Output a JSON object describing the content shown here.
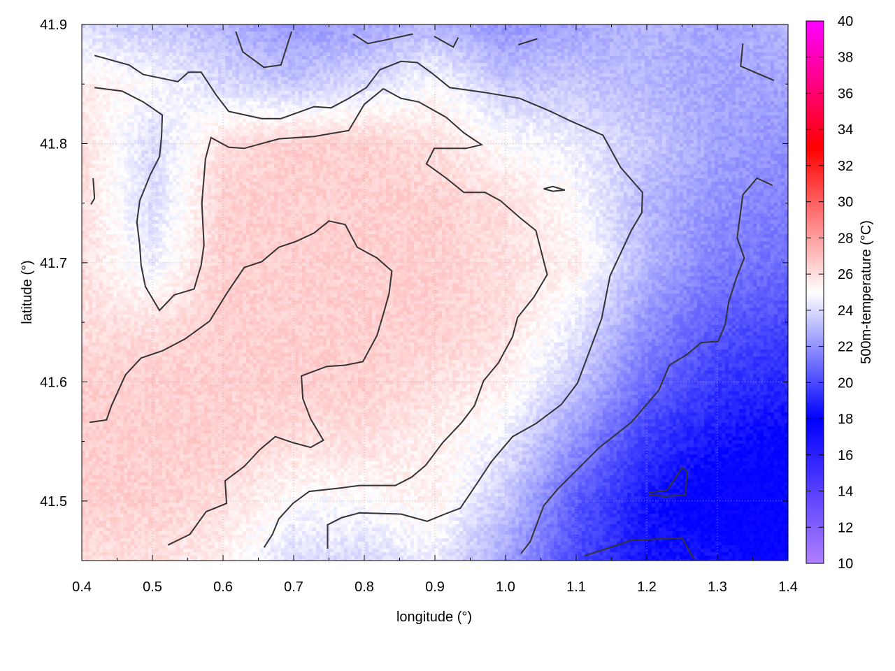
{
  "chart_data": {
    "type": "heatmap",
    "title": "",
    "xlabel": "longitude (°)",
    "ylabel": "latitude (°)",
    "colorbar_label": "500m-temperature (°C)",
    "xlim": [
      0.4,
      1.4
    ],
    "ylim": [
      41.45,
      41.9
    ],
    "xticks": [
      "0.4",
      "0.5",
      "0.6",
      "0.7",
      "0.8",
      "0.9",
      "1.0",
      "1.1",
      "1.2",
      "1.3",
      "1.4"
    ],
    "yticks": [
      "41.5",
      "41.6",
      "41.7",
      "41.8",
      "41.9"
    ],
    "clim": [
      10,
      40
    ],
    "cticks": [
      "10",
      "12",
      "14",
      "16",
      "18",
      "20",
      "22",
      "24",
      "26",
      "28",
      "30",
      "32",
      "34",
      "36",
      "38",
      "40"
    ],
    "grid": true,
    "colormap": [
      [
        10,
        "#b080ff"
      ],
      [
        18,
        "#0000ff"
      ],
      [
        25,
        "#ffffff"
      ],
      [
        33,
        "#ff0000"
      ],
      [
        40,
        "#ff00ff"
      ]
    ],
    "field": {
      "lon": [
        0.4,
        0.5,
        0.6,
        0.7,
        0.8,
        0.9,
        1.0,
        1.1,
        1.2,
        1.3,
        1.4
      ],
      "lat": [
        41.9,
        41.85,
        41.8,
        41.75,
        41.7,
        41.65,
        41.6,
        41.55,
        41.5,
        41.45
      ],
      "values": [
        [
          24,
          23.5,
          23,
          22,
          22.5,
          23,
          22,
          22.5,
          23,
          22.5,
          23
        ],
        [
          25.5,
          25,
          24,
          23.5,
          24,
          25,
          23.5,
          23.5,
          23,
          22.5,
          22.5
        ],
        [
          26,
          24,
          26,
          26.5,
          26.5,
          26,
          25,
          24.5,
          23.5,
          22.5,
          22
        ],
        [
          26,
          24,
          26.5,
          26.5,
          26.5,
          26.5,
          26,
          25,
          23,
          22,
          21.5
        ],
        [
          26,
          24.5,
          26.5,
          26.5,
          26.5,
          26.5,
          26,
          25.5,
          23,
          21.5,
          21
        ],
        [
          26,
          26,
          26.5,
          26.5,
          26.5,
          26.5,
          26,
          24.5,
          22,
          20.5,
          20
        ],
        [
          26.5,
          26.5,
          26.5,
          26.5,
          26.5,
          26,
          25.5,
          23.5,
          21,
          19.5,
          19
        ],
        [
          26.5,
          26.5,
          26.5,
          26,
          26,
          25.5,
          24.5,
          22,
          19.5,
          18.5,
          18
        ],
        [
          26.5,
          26.5,
          26,
          25,
          25,
          25.5,
          23.5,
          20.5,
          18.5,
          17.5,
          18
        ],
        [
          26,
          26,
          25.5,
          24,
          24,
          24.5,
          22.5,
          20,
          18.5,
          18.5,
          17.5
        ]
      ]
    },
    "contours": [
      [
        [
          0.418,
          41.874
        ],
        [
          0.467,
          41.866
        ],
        [
          0.487,
          41.858
        ],
        [
          0.536,
          41.852
        ],
        [
          0.551,
          41.86
        ],
        [
          0.569,
          41.86
        ],
        [
          0.59,
          41.841
        ],
        [
          0.608,
          41.827
        ],
        [
          0.655,
          41.821
        ],
        [
          0.682,
          41.821
        ],
        [
          0.729,
          41.831
        ],
        [
          0.753,
          41.83
        ],
        [
          0.778,
          41.838
        ],
        [
          0.803,
          41.847
        ],
        [
          0.822,
          41.862
        ],
        [
          0.852,
          41.869
        ],
        [
          0.875,
          41.868
        ],
        [
          0.896,
          41.859
        ],
        [
          0.921,
          41.847
        ],
        [
          0.97,
          41.843
        ],
        [
          1.02,
          41.838
        ],
        [
          1.064,
          41.827
        ],
        [
          1.092,
          41.819
        ],
        [
          1.138,
          41.807
        ],
        [
          1.163,
          41.78
        ],
        [
          1.194,
          41.759
        ],
        [
          1.193,
          41.742
        ],
        [
          1.178,
          41.727
        ],
        [
          1.148,
          41.689
        ],
        [
          1.136,
          41.653
        ],
        [
          1.102,
          41.599
        ],
        [
          1.079,
          41.581
        ],
        [
          1.043,
          41.565
        ],
        [
          1.01,
          41.554
        ],
        [
          0.98,
          41.533
        ],
        [
          0.961,
          41.516
        ],
        [
          0.936,
          41.494
        ],
        [
          0.914,
          41.489
        ],
        [
          0.889,
          41.483
        ],
        [
          0.852,
          41.489
        ],
        [
          0.793,
          41.49
        ],
        [
          0.768,
          41.486
        ],
        [
          0.748,
          41.48
        ],
        [
          0.748,
          41.46
        ]
      ],
      [
        [
          0.418,
          41.847
        ],
        [
          0.457,
          41.844
        ],
        [
          0.487,
          41.835
        ],
        [
          0.514,
          41.824
        ],
        [
          0.513,
          41.806
        ],
        [
          0.51,
          41.789
        ],
        [
          0.497,
          41.774
        ],
        [
          0.482,
          41.752
        ],
        [
          0.478,
          41.734
        ],
        [
          0.482,
          41.715
        ],
        [
          0.484,
          41.698
        ],
        [
          0.49,
          41.68
        ],
        [
          0.51,
          41.66
        ],
        [
          0.531,
          41.673
        ],
        [
          0.559,
          41.678
        ],
        [
          0.569,
          41.698
        ],
        [
          0.573,
          41.715
        ],
        [
          0.57,
          41.75
        ],
        [
          0.575,
          41.787
        ],
        [
          0.583,
          41.805
        ],
        [
          0.608,
          41.797
        ],
        [
          0.63,
          41.796
        ],
        [
          0.679,
          41.804
        ],
        [
          0.729,
          41.806
        ],
        [
          0.778,
          41.811
        ],
        [
          0.8,
          41.833
        ],
        [
          0.827,
          41.846
        ],
        [
          0.852,
          41.838
        ],
        [
          0.877,
          41.835
        ],
        [
          0.916,
          41.822
        ],
        [
          0.941,
          41.809
        ],
        [
          0.966,
          41.799
        ],
        [
          0.944,
          41.796
        ],
        [
          0.899,
          41.796
        ],
        [
          0.888,
          41.783
        ],
        [
          0.916,
          41.771
        ],
        [
          0.941,
          41.759
        ],
        [
          0.971,
          41.759
        ],
        [
          0.993,
          41.752
        ],
        [
          1.02,
          41.738
        ],
        [
          1.043,
          41.727
        ],
        [
          1.059,
          41.69
        ],
        [
          1.04,
          41.671
        ],
        [
          1.017,
          41.654
        ],
        [
          1.01,
          41.638
        ],
        [
          0.99,
          41.616
        ],
        [
          0.969,
          41.601
        ],
        [
          0.956,
          41.58
        ],
        [
          0.938,
          41.566
        ],
        [
          0.911,
          41.549
        ],
        [
          0.887,
          41.53
        ],
        [
          0.867,
          41.52
        ],
        [
          0.844,
          41.513
        ],
        [
          0.793,
          41.513
        ],
        [
          0.768,
          41.511
        ],
        [
          0.722,
          41.508
        ],
        [
          0.699,
          41.498
        ],
        [
          0.679,
          41.485
        ],
        [
          0.67,
          41.472
        ],
        [
          0.658,
          41.461
        ]
      ],
      [
        [
          0.411,
          41.566
        ],
        [
          0.435,
          41.568
        ],
        [
          0.442,
          41.58
        ],
        [
          0.462,
          41.606
        ],
        [
          0.484,
          41.62
        ],
        [
          0.514,
          41.626
        ],
        [
          0.546,
          41.636
        ],
        [
          0.581,
          41.651
        ],
        [
          0.605,
          41.674
        ],
        [
          0.63,
          41.696
        ],
        [
          0.655,
          41.701
        ],
        [
          0.679,
          41.713
        ],
        [
          0.704,
          41.718
        ],
        [
          0.729,
          41.725
        ],
        [
          0.75,
          41.735
        ],
        [
          0.773,
          41.732
        ],
        [
          0.79,
          41.713
        ],
        [
          0.818,
          41.704
        ],
        [
          0.839,
          41.693
        ],
        [
          0.835,
          41.674
        ],
        [
          0.827,
          41.657
        ],
        [
          0.818,
          41.639
        ],
        [
          0.798,
          41.617
        ],
        [
          0.773,
          41.614
        ],
        [
          0.747,
          41.613
        ],
        [
          0.711,
          41.605
        ],
        [
          0.713,
          41.586
        ],
        [
          0.724,
          41.569
        ],
        [
          0.742,
          41.551
        ],
        [
          0.724,
          41.545
        ],
        [
          0.699,
          41.549
        ],
        [
          0.674,
          41.554
        ],
        [
          0.652,
          41.543
        ],
        [
          0.63,
          41.529
        ],
        [
          0.603,
          41.517
        ],
        [
          0.605,
          41.498
        ],
        [
          0.576,
          41.491
        ],
        [
          0.553,
          41.472
        ],
        [
          0.522,
          41.463
        ]
      ],
      [
        [
          1.022,
          41.456
        ],
        [
          1.035,
          41.466
        ],
        [
          1.054,
          41.496
        ],
        [
          1.074,
          41.51
        ],
        [
          1.133,
          41.545
        ],
        [
          1.178,
          41.566
        ],
        [
          1.217,
          41.593
        ],
        [
          1.232,
          41.614
        ],
        [
          1.257,
          41.623
        ],
        [
          1.277,
          41.633
        ],
        [
          1.301,
          41.634
        ],
        [
          1.311,
          41.648
        ],
        [
          1.316,
          41.667
        ],
        [
          1.326,
          41.686
        ],
        [
          1.338,
          41.704
        ],
        [
          1.328,
          41.721
        ],
        [
          1.336,
          41.757
        ],
        [
          1.356,
          41.771
        ],
        [
          1.378,
          41.765
        ]
      ],
      [
        [
          1.112,
          41.454
        ],
        [
          1.148,
          41.461
        ],
        [
          1.178,
          41.467
        ],
        [
          1.25,
          41.469
        ],
        [
          1.267,
          41.451
        ]
      ],
      [
        [
          1.203,
          41.507
        ],
        [
          1.229,
          41.509
        ],
        [
          1.25,
          41.528
        ],
        [
          1.257,
          41.525
        ],
        [
          1.255,
          41.505
        ],
        [
          1.227,
          41.504
        ],
        [
          1.203,
          41.505
        ]
      ],
      [
        [
          0.618,
          41.894
        ],
        [
          0.628,
          41.877
        ],
        [
          0.658,
          41.864
        ],
        [
          0.682,
          41.866
        ],
        [
          0.697,
          41.894
        ]
      ],
      [
        [
          0.784,
          41.892
        ],
        [
          0.805,
          41.884
        ],
        [
          0.83,
          41.887
        ],
        [
          0.869,
          41.892
        ]
      ],
      [
        [
          0.899,
          41.89
        ],
        [
          0.926,
          41.881
        ],
        [
          0.933,
          41.889
        ]
      ],
      [
        [
          1.018,
          41.883
        ],
        [
          1.045,
          41.888
        ]
      ],
      [
        [
          1.336,
          41.884
        ],
        [
          1.333,
          41.865
        ],
        [
          1.38,
          41.853
        ]
      ],
      [
        [
          1.054,
          41.762
        ],
        [
          1.067,
          41.764
        ],
        [
          1.084,
          41.761
        ],
        [
          1.067,
          41.76
        ],
        [
          1.054,
          41.762
        ]
      ],
      [
        [
          0.416,
          41.771
        ],
        [
          0.418,
          41.754
        ],
        [
          0.413,
          41.749
        ]
      ]
    ]
  }
}
